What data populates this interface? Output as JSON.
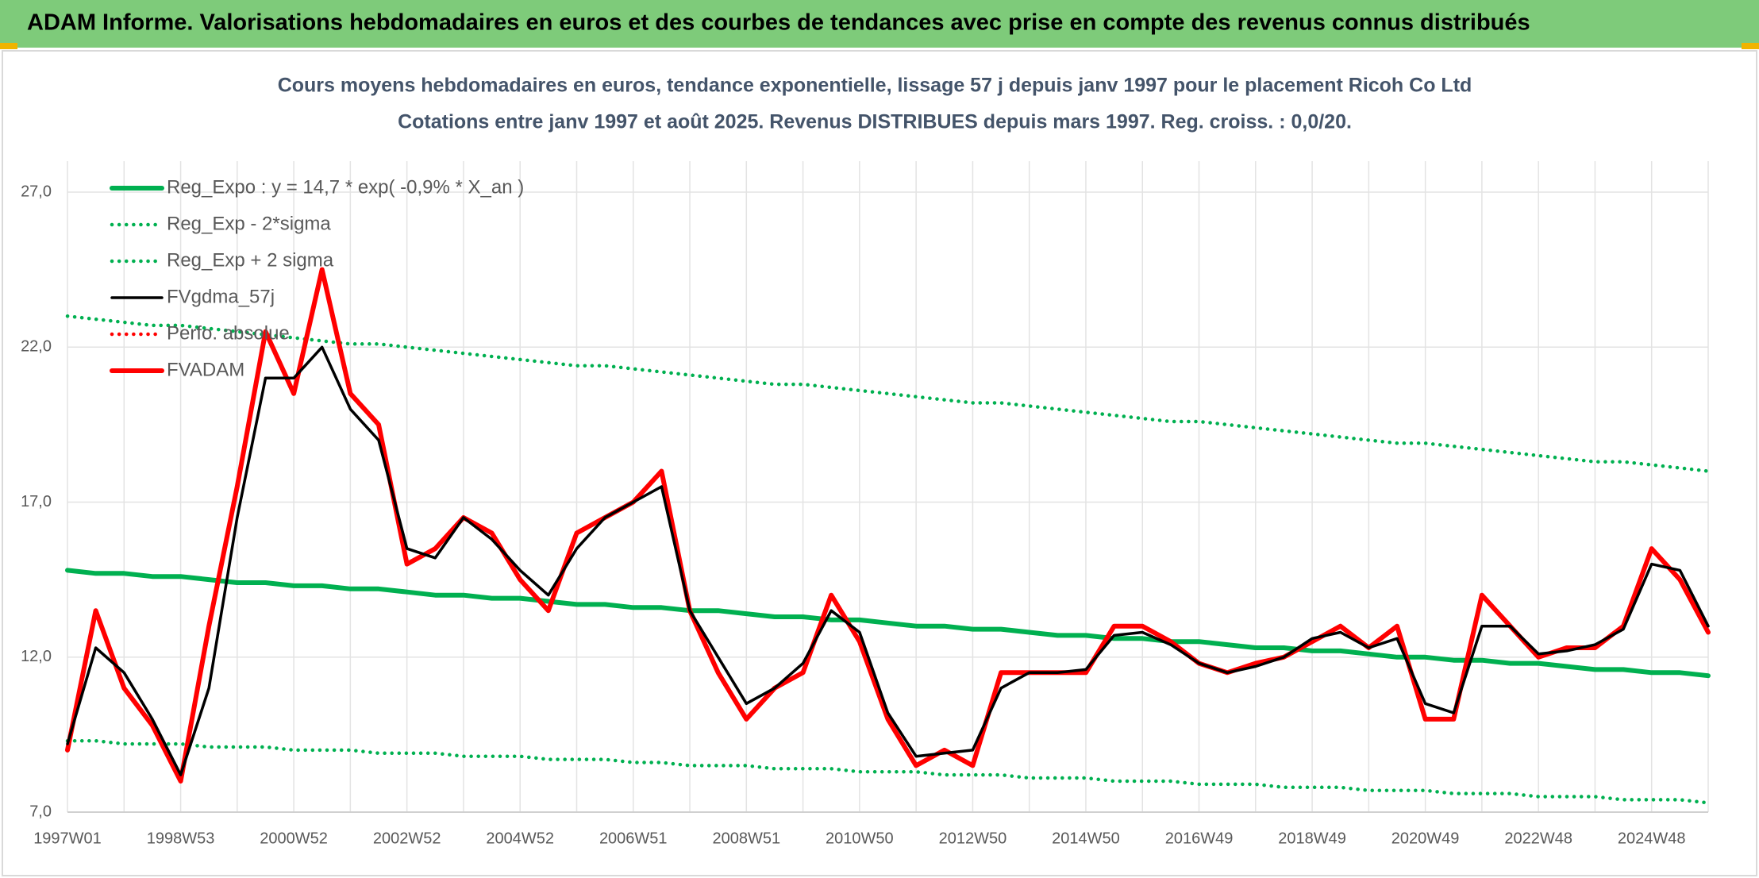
{
  "chart_data": {
    "type": "line",
    "title": "ADAM Informe. Valorisations hebdomadaires en euros et des courbes de tendances avec prise en compte des revenus connus distribués",
    "subtitle": [
      "Cours moyens hebdomadaires en euros, tendance exponentielle, lissage 57 j depuis janv 1997 pour le placement Ricoh Co Ltd",
      "Cotations entre janv 1997 et août 2025. Revenus DISTRIBUES depuis mars 1997. Reg. croiss. : 0,0/20."
    ],
    "categories": [
      "1997W01",
      null,
      null,
      null,
      "1998W53",
      null,
      null,
      null,
      "2000W52",
      null,
      null,
      null,
      "2002W52",
      null,
      null,
      null,
      "2004W52",
      null,
      null,
      null,
      "2006W51",
      null,
      null,
      null,
      "2008W51",
      null,
      null,
      null,
      "2010W50",
      null,
      null,
      null,
      "2012W50",
      null,
      null,
      null,
      "2014W50",
      null,
      null,
      null,
      "2016W49",
      null,
      null,
      null,
      "2018W49",
      null,
      null,
      null,
      "2020W49",
      null,
      null,
      null,
      "2022W48",
      null,
      null,
      null,
      "2024W48",
      null,
      null
    ],
    "ylim": [
      7,
      28
    ],
    "yticks": [
      {
        "value": 7,
        "label": "7,0"
      },
      {
        "value": 12,
        "label": "12,0"
      },
      {
        "value": 17,
        "label": "17,0"
      },
      {
        "value": 22,
        "label": "22,0"
      },
      {
        "value": 27,
        "label": "27,0"
      }
    ],
    "grid": true,
    "legend": "upper left",
    "series": [
      {
        "name": "Reg_Expo : y = 14,7 * exp( -0,9% *  X_an )",
        "color": "#00b050",
        "style": "solid",
        "weight": "thick",
        "values": [
          14.8,
          14.7,
          14.7,
          14.6,
          14.6,
          14.5,
          14.4,
          14.4,
          14.3,
          14.3,
          14.2,
          14.2,
          14.1,
          14.0,
          14.0,
          13.9,
          13.9,
          13.8,
          13.7,
          13.7,
          13.6,
          13.6,
          13.5,
          13.5,
          13.4,
          13.3,
          13.3,
          13.2,
          13.2,
          13.1,
          13.0,
          13.0,
          12.9,
          12.9,
          12.8,
          12.7,
          12.7,
          12.6,
          12.6,
          12.5,
          12.5,
          12.4,
          12.3,
          12.3,
          12.2,
          12.2,
          12.1,
          12.0,
          12.0,
          11.9,
          11.9,
          11.8,
          11.8,
          11.7,
          11.6,
          11.6,
          11.5,
          11.5,
          11.4
        ]
      },
      {
        "name": "Reg_Exp - 2*sigma",
        "color": "#00b050",
        "style": "dotted",
        "weight": "normal",
        "values": [
          9.3,
          9.3,
          9.2,
          9.2,
          9.2,
          9.1,
          9.1,
          9.1,
          9.0,
          9.0,
          9.0,
          8.9,
          8.9,
          8.9,
          8.8,
          8.8,
          8.8,
          8.7,
          8.7,
          8.7,
          8.6,
          8.6,
          8.5,
          8.5,
          8.5,
          8.4,
          8.4,
          8.4,
          8.3,
          8.3,
          8.3,
          8.2,
          8.2,
          8.2,
          8.1,
          8.1,
          8.1,
          8.0,
          8.0,
          8.0,
          7.9,
          7.9,
          7.9,
          7.8,
          7.8,
          7.8,
          7.7,
          7.7,
          7.7,
          7.6,
          7.6,
          7.6,
          7.5,
          7.5,
          7.5,
          7.4,
          7.4,
          7.4,
          7.3
        ]
      },
      {
        "name": "Reg_Exp + 2 sigma",
        "color": "#00b050",
        "style": "dotted",
        "weight": "normal",
        "values": [
          23.0,
          22.9,
          22.8,
          22.7,
          22.7,
          22.6,
          22.5,
          22.4,
          22.3,
          22.2,
          22.1,
          22.1,
          22.0,
          21.9,
          21.8,
          21.7,
          21.6,
          21.5,
          21.4,
          21.4,
          21.3,
          21.2,
          21.1,
          21.0,
          20.9,
          20.8,
          20.8,
          20.7,
          20.6,
          20.5,
          20.4,
          20.3,
          20.2,
          20.2,
          20.1,
          20.0,
          19.9,
          19.8,
          19.7,
          19.6,
          19.6,
          19.5,
          19.4,
          19.3,
          19.2,
          19.1,
          19.0,
          18.9,
          18.9,
          18.8,
          18.7,
          18.6,
          18.5,
          18.4,
          18.3,
          18.3,
          18.2,
          18.1,
          18.0
        ]
      },
      {
        "name": "FVgdma_57j",
        "color": "#000000",
        "style": "solid",
        "weight": "normal",
        "values": [
          9.2,
          12.3,
          11.5,
          10.0,
          8.2,
          11.0,
          16.5,
          21.0,
          21.0,
          22.0,
          20.0,
          19.0,
          15.5,
          15.2,
          16.5,
          15.8,
          14.8,
          14.0,
          15.5,
          16.5,
          17.0,
          17.5,
          13.5,
          12.0,
          10.5,
          11.0,
          11.8,
          13.5,
          12.8,
          10.2,
          8.8,
          8.9,
          9.0,
          11.0,
          11.5,
          11.5,
          11.6,
          12.7,
          12.8,
          12.4,
          11.8,
          11.5,
          11.7,
          12.0,
          12.6,
          12.8,
          12.3,
          12.6,
          10.5,
          10.2,
          13.0,
          13.0,
          12.1,
          12.2,
          12.4,
          12.9,
          15.0,
          14.8,
          13.0
        ]
      },
      {
        "name": "Perfo. absolue",
        "color": "#ff0000",
        "style": "dotted",
        "weight": "normal",
        "values": [
          null,
          null,
          null,
          null,
          null,
          null,
          null,
          null,
          null,
          null,
          null,
          null,
          null,
          null,
          null,
          null,
          null,
          null,
          null,
          null,
          null,
          null,
          null,
          null,
          null,
          null,
          null,
          null,
          null,
          null,
          null,
          null,
          null,
          null,
          null,
          null,
          null,
          null,
          null,
          null,
          null,
          null,
          null,
          null,
          null,
          null,
          null,
          null,
          null,
          null,
          null,
          null,
          null,
          null,
          null,
          null,
          null,
          null,
          null
        ]
      },
      {
        "name": "FVADAM",
        "color": "#ff0000",
        "style": "solid",
        "weight": "thick",
        "values": [
          9.0,
          13.5,
          11.0,
          9.8,
          8.0,
          13.0,
          17.5,
          22.5,
          20.5,
          24.5,
          20.5,
          19.5,
          15.0,
          15.5,
          16.5,
          16.0,
          14.5,
          13.5,
          16.0,
          16.5,
          17.0,
          18.0,
          13.5,
          11.5,
          10.0,
          11.0,
          11.5,
          14.0,
          12.5,
          10.0,
          8.5,
          9.0,
          8.5,
          11.5,
          11.5,
          11.5,
          11.5,
          13.0,
          13.0,
          12.5,
          11.8,
          11.5,
          11.8,
          12.0,
          12.5,
          13.0,
          12.3,
          13.0,
          10.0,
          10.0,
          14.0,
          13.0,
          12.0,
          12.3,
          12.3,
          13.0,
          15.5,
          14.5,
          12.8
        ]
      }
    ]
  }
}
